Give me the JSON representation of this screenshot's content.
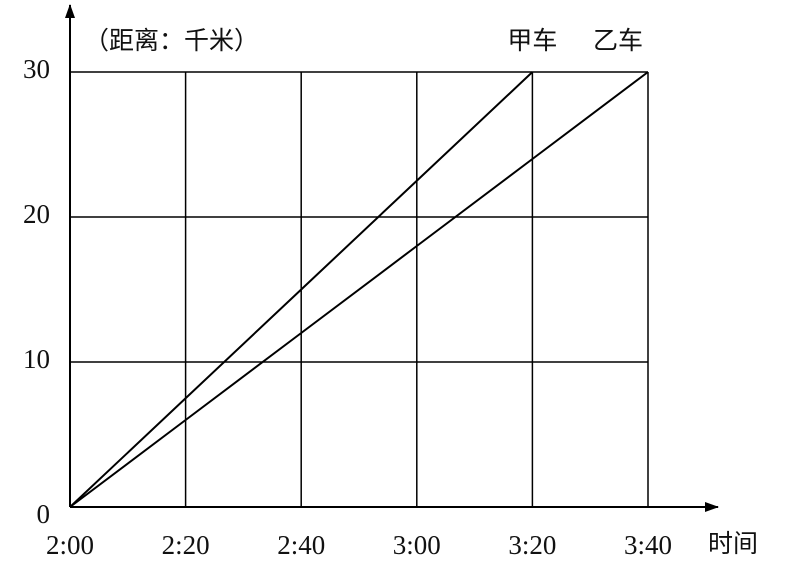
{
  "chart_data": {
    "type": "line",
    "y_label": "（距离：千米）",
    "x_label": "时间",
    "categories": [
      "2:00",
      "2:20",
      "2:40",
      "3:00",
      "3:20",
      "3:40"
    ],
    "series": [
      {
        "name": "甲车",
        "color": "#000000",
        "values": [
          0,
          7.5,
          15,
          22.5,
          30,
          null
        ]
      },
      {
        "name": "乙车",
        "color": "#000000",
        "values": [
          0,
          6,
          12,
          18,
          24,
          30
        ]
      }
    ],
    "ylim": [
      0,
      30
    ],
    "yticks": [
      0,
      10,
      20,
      30
    ],
    "grid": true
  }
}
